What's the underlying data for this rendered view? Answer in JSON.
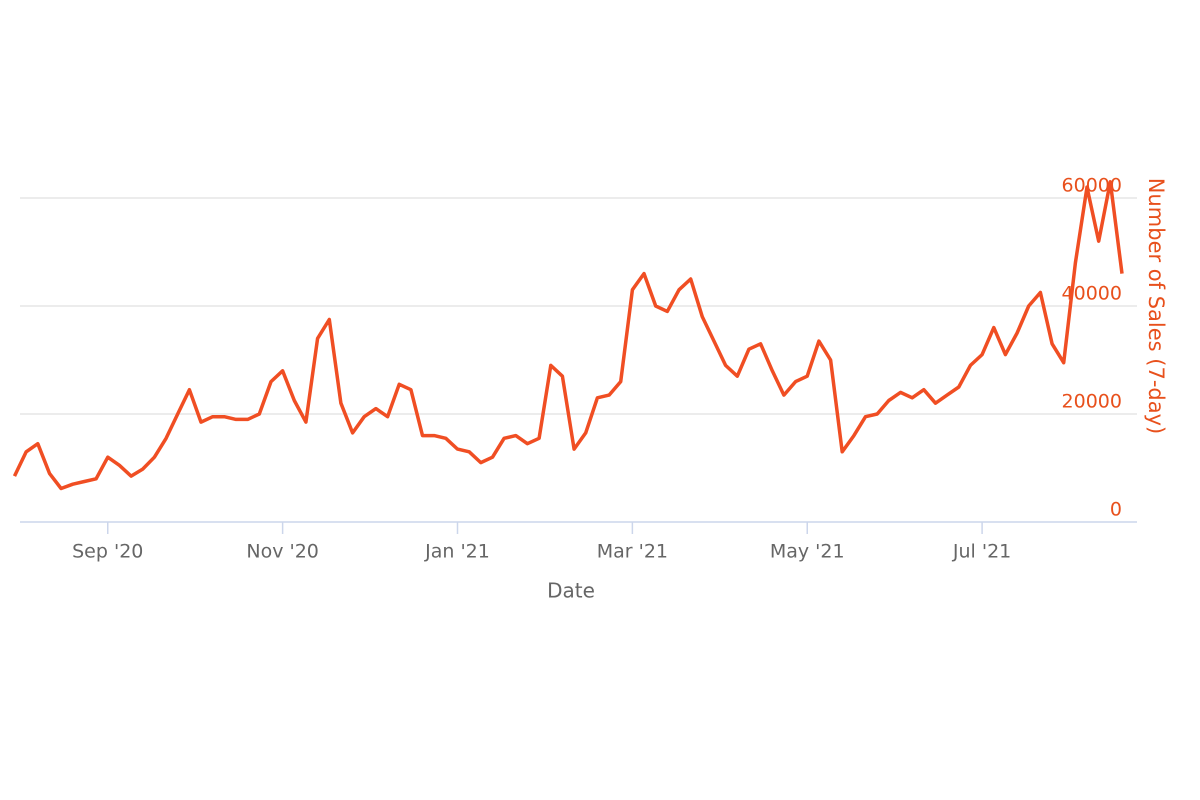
{
  "chart_data": {
    "type": "line",
    "x_label": "Date",
    "y_label": "Number of Sales (7-day)",
    "y_axis_position": "right",
    "grid": true,
    "categories": [
      null,
      null,
      null,
      null,
      null,
      null,
      null,
      null,
      "Sep '20",
      null,
      null,
      null,
      null,
      null,
      null,
      null,
      null,
      null,
      null,
      null,
      null,
      null,
      null,
      "Nov '20",
      null,
      null,
      null,
      null,
      null,
      null,
      null,
      null,
      null,
      null,
      null,
      null,
      null,
      null,
      "Jan '21",
      null,
      null,
      null,
      null,
      null,
      null,
      null,
      null,
      null,
      null,
      null,
      null,
      null,
      null,
      "Mar '21",
      null,
      null,
      null,
      null,
      null,
      null,
      null,
      null,
      null,
      null,
      null,
      null,
      null,
      null,
      "May '21",
      null,
      null,
      null,
      null,
      null,
      null,
      null,
      null,
      null,
      null,
      null,
      null,
      null,
      null,
      "Jul '21",
      null,
      null,
      null,
      null,
      null,
      null,
      null,
      null,
      null,
      null,
      null,
      null
    ],
    "series": [
      {
        "name": "Number of Sales (7-day)",
        "color": "#f04e23",
        "values": [
          8500,
          13000,
          14500,
          9000,
          6200,
          7000,
          7500,
          8000,
          12000,
          10500,
          8500,
          9800,
          12000,
          15500,
          20000,
          24500,
          18500,
          19500,
          19500,
          19000,
          19000,
          20000,
          26000,
          28000,
          22500,
          18500,
          34000,
          37500,
          22000,
          16500,
          19500,
          21000,
          19500,
          25500,
          24500,
          16000,
          16000,
          15500,
          13500,
          13000,
          11000,
          12000,
          15500,
          16000,
          14500,
          15500,
          29000,
          27000,
          13500,
          16500,
          23000,
          23500,
          26000,
          43000,
          46000,
          40000,
          39000,
          43000,
          45000,
          38000,
          33500,
          29000,
          27000,
          32000,
          33000,
          28000,
          23500,
          26000,
          27000,
          33500,
          30000,
          13000,
          16000,
          19500,
          20000,
          22500,
          24000,
          23000,
          24500,
          22000,
          23500,
          25000,
          29000,
          31000,
          36000,
          31000,
          35000,
          40000,
          42500,
          33000,
          29500,
          48000,
          62000,
          52000,
          63000,
          46000
        ]
      }
    ],
    "ylim": [
      0,
      60000
    ],
    "yticks": [
      0,
      20000,
      40000,
      60000
    ]
  }
}
